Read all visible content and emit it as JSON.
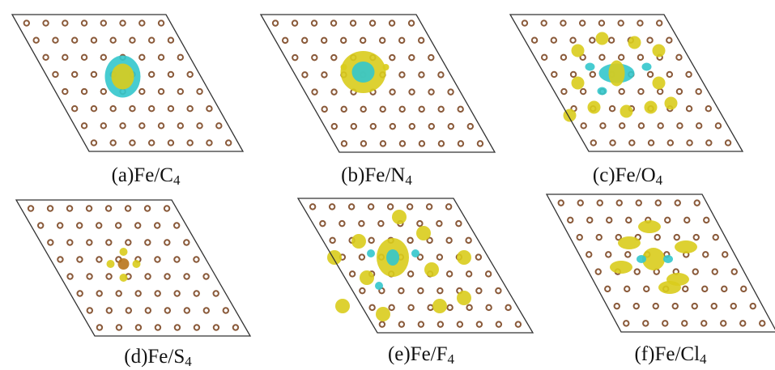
{
  "panels": [
    {
      "label": "(a)Fe/C",
      "subscript": "4"
    },
    {
      "label": "(b)Fe/N",
      "subscript": "4"
    },
    {
      "label": "(c)Fe/O",
      "subscript": "4"
    },
    {
      "label": "(d)Fe/S",
      "subscript": "4"
    },
    {
      "label": "(e)Fe/F",
      "subscript": "4"
    },
    {
      "label": "(f)Fe/Cl",
      "subscript": "4"
    }
  ]
}
